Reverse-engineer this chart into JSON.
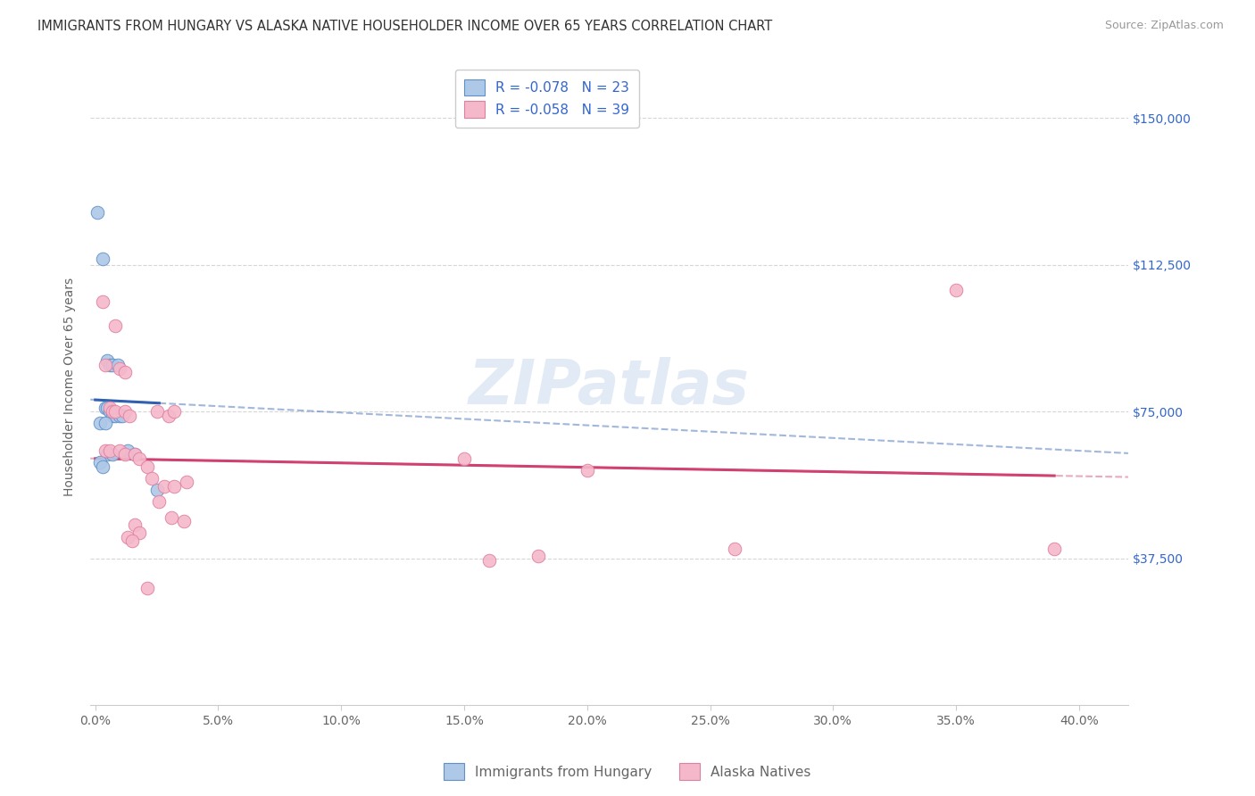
{
  "title": "IMMIGRANTS FROM HUNGARY VS ALASKA NATIVE HOUSEHOLDER INCOME OVER 65 YEARS CORRELATION CHART",
  "source": "Source: ZipAtlas.com",
  "ylabel": "Householder Income Over 65 years",
  "ytick_values": [
    37500,
    75000,
    112500,
    150000
  ],
  "ymin": 0,
  "ymax": 162500,
  "xmin": -0.002,
  "xmax": 0.42,
  "blue_R": -0.078,
  "blue_N": 23,
  "pink_R": -0.058,
  "pink_N": 39,
  "legend_label_blue": "Immigrants from Hungary",
  "legend_label_pink": "Alaska Natives",
  "watermark": "ZIPatlas",
  "blue_fill": "#aec8e8",
  "pink_fill": "#f5b8ca",
  "blue_edge": "#6090c8",
  "pink_edge": "#e080a0",
  "blue_line": "#3060b0",
  "pink_line": "#d04070",
  "grid_color": "#cccccc",
  "background_color": "#ffffff",
  "title_color": "#333333",
  "source_color": "#999999",
  "axis_color": "#666666",
  "right_tick_color": "#3366cc",
  "blue_pts": [
    [
      0.001,
      126000
    ],
    [
      0.003,
      114000
    ],
    [
      0.005,
      88000
    ],
    [
      0.006,
      87000
    ],
    [
      0.007,
      87000
    ],
    [
      0.009,
      87000
    ],
    [
      0.004,
      76000
    ],
    [
      0.005,
      76000
    ],
    [
      0.006,
      75000
    ],
    [
      0.007,
      75000
    ],
    [
      0.007,
      74000
    ],
    [
      0.008,
      74000
    ],
    [
      0.01,
      74000
    ],
    [
      0.011,
      74000
    ],
    [
      0.002,
      72000
    ],
    [
      0.004,
      72000
    ],
    [
      0.005,
      64000
    ],
    [
      0.007,
      64000
    ],
    [
      0.013,
      65000
    ],
    [
      0.016,
      64000
    ],
    [
      0.002,
      62000
    ],
    [
      0.003,
      61000
    ],
    [
      0.025,
      55000
    ]
  ],
  "pink_pts": [
    [
      0.003,
      103000
    ],
    [
      0.008,
      97000
    ],
    [
      0.004,
      87000
    ],
    [
      0.01,
      86000
    ],
    [
      0.012,
      85000
    ],
    [
      0.006,
      76000
    ],
    [
      0.007,
      75000
    ],
    [
      0.008,
      75000
    ],
    [
      0.012,
      75000
    ],
    [
      0.014,
      74000
    ],
    [
      0.025,
      75000
    ],
    [
      0.03,
      74000
    ],
    [
      0.032,
      75000
    ],
    [
      0.35,
      106000
    ],
    [
      0.004,
      65000
    ],
    [
      0.006,
      65000
    ],
    [
      0.01,
      65000
    ],
    [
      0.012,
      64000
    ],
    [
      0.016,
      64000
    ],
    [
      0.018,
      63000
    ],
    [
      0.021,
      61000
    ],
    [
      0.023,
      58000
    ],
    [
      0.026,
      52000
    ],
    [
      0.028,
      56000
    ],
    [
      0.032,
      56000
    ],
    [
      0.037,
      57000
    ],
    [
      0.031,
      48000
    ],
    [
      0.036,
      47000
    ],
    [
      0.016,
      46000
    ],
    [
      0.018,
      44000
    ],
    [
      0.013,
      43000
    ],
    [
      0.015,
      42000
    ],
    [
      0.021,
      30000
    ],
    [
      0.2,
      60000
    ],
    [
      0.15,
      63000
    ],
    [
      0.16,
      37000
    ],
    [
      0.18,
      38000
    ],
    [
      0.26,
      40000
    ],
    [
      0.39,
      40000
    ]
  ],
  "title_fontsize": 10.5,
  "source_fontsize": 9,
  "axis_label_fontsize": 10,
  "tick_fontsize": 10,
  "legend_fontsize": 11,
  "watermark_fontsize": 50,
  "scatter_size": 110
}
